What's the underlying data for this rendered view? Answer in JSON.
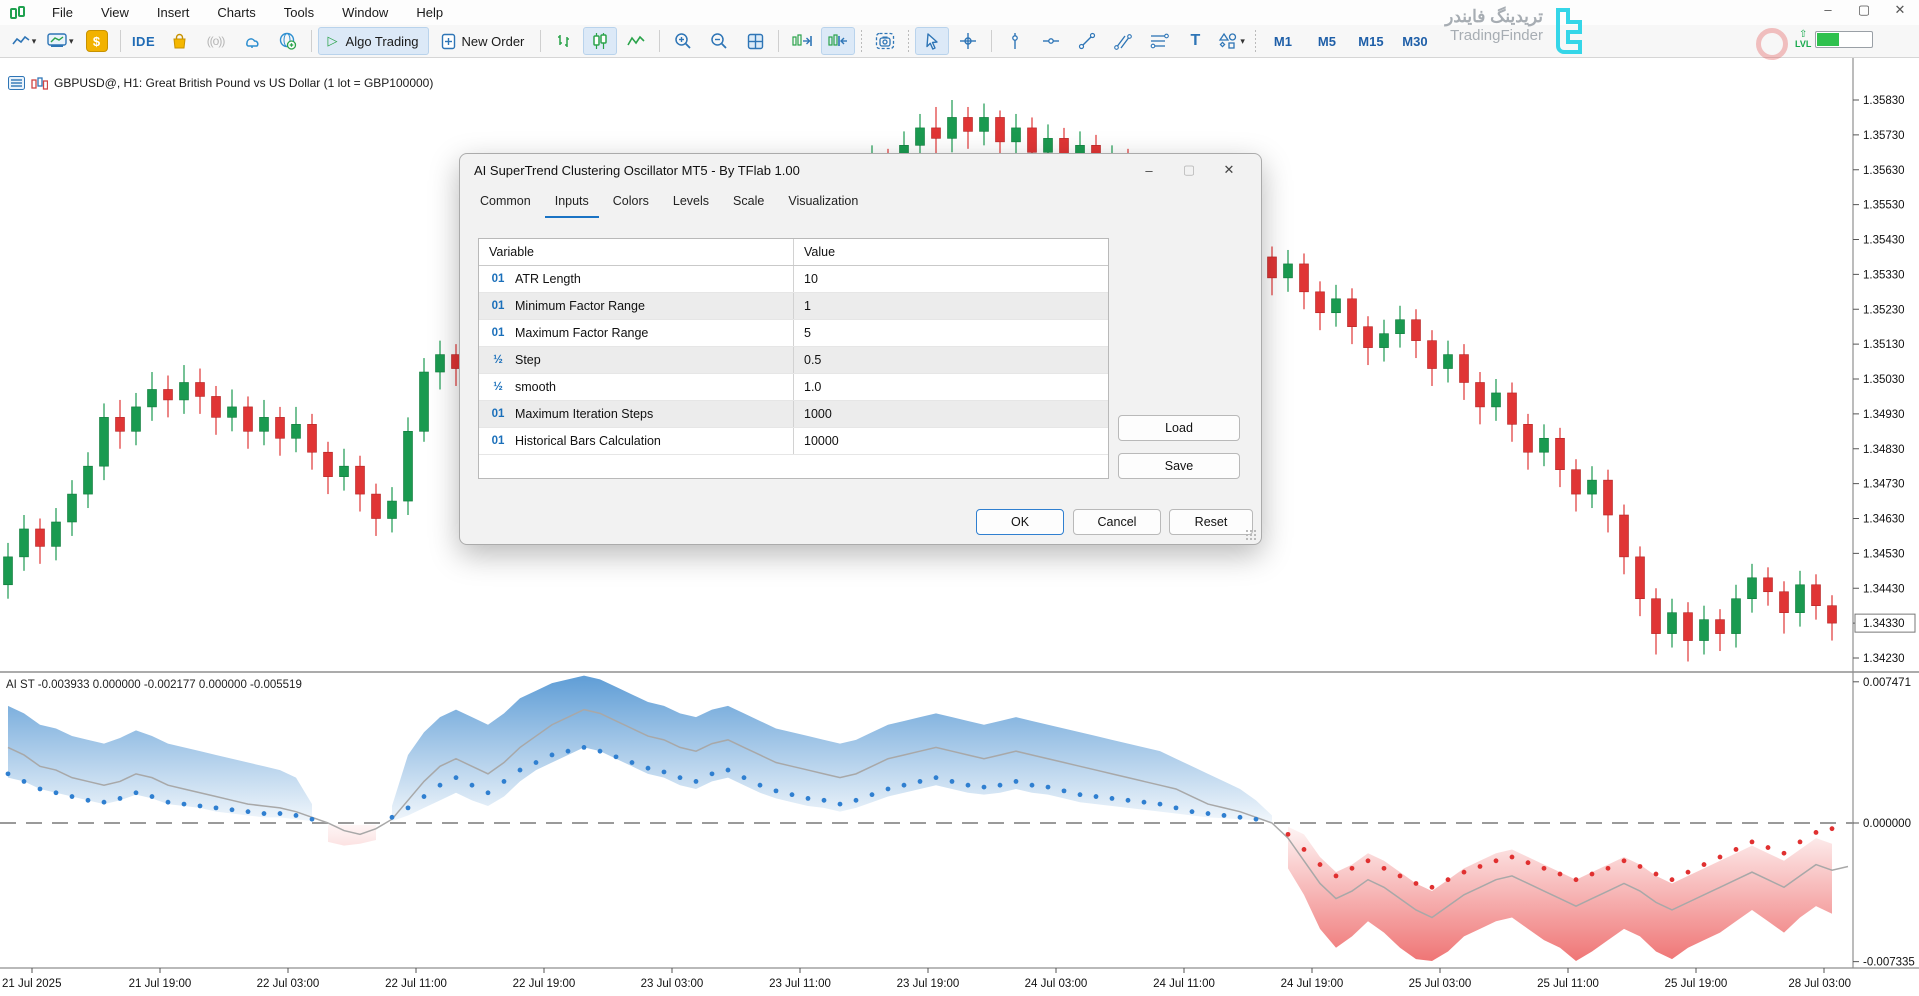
{
  "window": {
    "minimize": "–",
    "maximize": "▢",
    "close": "✕"
  },
  "menu": {
    "items": [
      "File",
      "View",
      "Insert",
      "Charts",
      "Tools",
      "Window",
      "Help"
    ]
  },
  "toolbar": {
    "ide_label": "IDE",
    "algo_trading_label": "Algo Trading",
    "new_order_label": "New Order",
    "timeframes": [
      "M1",
      "M5",
      "M15",
      "M30"
    ],
    "lvl_label": "LVL",
    "dollar_glyph": "$",
    "signal_glyph": "((o))",
    "text_tool_glyph": "T",
    "caret_glyph": "▾"
  },
  "brand": {
    "fa": "تریدینگ فایندر",
    "en": "TradingFinder"
  },
  "chart_header": {
    "symbol_line": "GBPUSD@, H1:  Great British Pound vs US Dollar (1 lot = GBP100000)"
  },
  "dialog": {
    "title": "AI SuperTrend Clustering Oscillator MT5 - By TFlab 1.00",
    "tabs": [
      "Common",
      "Inputs",
      "Colors",
      "Levels",
      "Scale",
      "Visualization"
    ],
    "active_tab": "Inputs",
    "table_headers": [
      "Variable",
      "Value"
    ],
    "rows": [
      {
        "icon": "01",
        "name": "ATR Length",
        "value": "10"
      },
      {
        "icon": "01",
        "name": "Minimum Factor Range",
        "value": "1"
      },
      {
        "icon": "01",
        "name": "Maximum Factor Range",
        "value": "5"
      },
      {
        "icon": "½",
        "name": "Step",
        "value": "0.5"
      },
      {
        "icon": "½",
        "name": "smooth",
        "value": "1.0"
      },
      {
        "icon": "01",
        "name": "Maximum Iteration Steps",
        "value": "1000"
      },
      {
        "icon": "01",
        "name": "Historical Bars Calculation",
        "value": "10000"
      }
    ],
    "buttons": {
      "load": "Load",
      "save": "Save",
      "ok": "OK",
      "cancel": "Cancel",
      "reset": "Reset"
    }
  },
  "price_axis": {
    "labels": [
      "1.35830",
      "1.35730",
      "1.35630",
      "1.35530",
      "1.35430",
      "1.35330",
      "1.35230",
      "1.35130",
      "1.35030",
      "1.34930",
      "1.34830",
      "1.34730",
      "1.34630",
      "1.34530",
      "1.34430",
      "1.34330",
      "1.34230"
    ],
    "current_label": "1.34330"
  },
  "time_axis": {
    "labels": [
      "21 Jul 2025",
      "21 Jul 19:00",
      "22 Jul 03:00",
      "22 Jul 11:00",
      "22 Jul 19:00",
      "23 Jul 03:00",
      "23 Jul 11:00",
      "23 Jul 19:00",
      "24 Jul 03:00",
      "24 Jul 11:00",
      "24 Jul 19:00",
      "25 Jul 03:00",
      "25 Jul 11:00",
      "25 Jul 19:00",
      "28 Jul 03:00"
    ]
  },
  "oscillator_panel": {
    "label": "AI ST -0.003933 0.000000 -0.002177 0.000000 -0.005519",
    "axis_labels": [
      "0.007471",
      "0.000000",
      "-0.007335"
    ]
  },
  "chart_data": {
    "type": "candlestick+oscillator",
    "symbol": "GBPUSD",
    "timeframe": "H1",
    "price_top_label": 1.3583,
    "price_step": 0.001,
    "current_price": 1.3433,
    "colors": {
      "up": "#1a9a50",
      "down": "#e03535",
      "osc_blue": "#5b9bd5",
      "osc_red": "#ee6b6b",
      "dot_blue": "#2f7fd0",
      "dot_red": "#e03030",
      "osc_line": "#a8a8a8"
    },
    "candles": [
      [
        1.3444,
        1.3456,
        1.344,
        1.3452
      ],
      [
        1.3452,
        1.3464,
        1.3448,
        1.346
      ],
      [
        1.346,
        1.3463,
        1.345,
        1.3455
      ],
      [
        1.3455,
        1.3466,
        1.3451,
        1.3462
      ],
      [
        1.3462,
        1.3474,
        1.3458,
        1.347
      ],
      [
        1.347,
        1.3482,
        1.3466,
        1.3478
      ],
      [
        1.3478,
        1.3496,
        1.3474,
        1.3492
      ],
      [
        1.3492,
        1.3497,
        1.3483,
        1.3488
      ],
      [
        1.3488,
        1.3499,
        1.3484,
        1.3495
      ],
      [
        1.3495,
        1.3505,
        1.3491,
        1.35
      ],
      [
        1.35,
        1.3504,
        1.3492,
        1.3497
      ],
      [
        1.3497,
        1.3507,
        1.3493,
        1.3502
      ],
      [
        1.3502,
        1.3506,
        1.3493,
        1.3498
      ],
      [
        1.3498,
        1.3501,
        1.3487,
        1.3492
      ],
      [
        1.3492,
        1.35,
        1.3488,
        1.3495
      ],
      [
        1.3495,
        1.3498,
        1.3483,
        1.3488
      ],
      [
        1.3488,
        1.3497,
        1.3484,
        1.3492
      ],
      [
        1.3492,
        1.3495,
        1.3481,
        1.3486
      ],
      [
        1.3486,
        1.3495,
        1.3482,
        1.349
      ],
      [
        1.349,
        1.3493,
        1.3477,
        1.3482
      ],
      [
        1.3482,
        1.3485,
        1.347,
        1.3475
      ],
      [
        1.3475,
        1.3483,
        1.3471,
        1.3478
      ],
      [
        1.3478,
        1.3481,
        1.3465,
        1.347
      ],
      [
        1.347,
        1.3473,
        1.3458,
        1.3463
      ],
      [
        1.3463,
        1.3472,
        1.3459,
        1.3468
      ],
      [
        1.3468,
        1.3492,
        1.3464,
        1.3488
      ],
      [
        1.3488,
        1.3509,
        1.3485,
        1.3505
      ],
      [
        1.3505,
        1.3514,
        1.35,
        1.351
      ],
      [
        1.351,
        1.3513,
        1.3501,
        1.3506
      ],
      [
        1.3506,
        1.3516,
        1.3502,
        1.3512
      ],
      [
        1.3512,
        1.3515,
        1.349,
        1.3495
      ],
      [
        1.3495,
        1.3498,
        1.3478,
        1.3483
      ],
      [
        1.3483,
        1.3494,
        1.3479,
        1.349
      ],
      [
        1.349,
        1.3502,
        1.3486,
        1.3498
      ],
      [
        1.3498,
        1.3509,
        1.3494,
        1.3505
      ],
      [
        1.3505,
        1.3508,
        1.3495,
        1.35
      ],
      [
        1.35,
        1.3512,
        1.3496,
        1.3508
      ],
      [
        1.3508,
        1.3519,
        1.3504,
        1.3515
      ],
      [
        1.3515,
        1.3518,
        1.3505,
        1.351
      ],
      [
        1.351,
        1.3522,
        1.3506,
        1.3518
      ],
      [
        1.3518,
        1.3528,
        1.3514,
        1.3524
      ],
      [
        1.3524,
        1.3527,
        1.3515,
        1.352
      ],
      [
        1.352,
        1.3532,
        1.3516,
        1.3528
      ],
      [
        1.3528,
        1.3539,
        1.3524,
        1.3535
      ],
      [
        1.3535,
        1.3538,
        1.3525,
        1.353
      ],
      [
        1.353,
        1.3542,
        1.3526,
        1.3538
      ],
      [
        1.3538,
        1.3549,
        1.3534,
        1.3545
      ],
      [
        1.3545,
        1.3548,
        1.3535,
        1.354
      ],
      [
        1.354,
        1.3552,
        1.3536,
        1.3548
      ],
      [
        1.3548,
        1.3551,
        1.3538,
        1.3543
      ],
      [
        1.3543,
        1.3554,
        1.3539,
        1.355
      ],
      [
        1.355,
        1.356,
        1.3546,
        1.3556
      ],
      [
        1.3556,
        1.3559,
        1.3547,
        1.3552
      ],
      [
        1.3552,
        1.3564,
        1.3548,
        1.356
      ],
      [
        1.356,
        1.357,
        1.3556,
        1.3566
      ],
      [
        1.3566,
        1.3569,
        1.3557,
        1.3562
      ],
      [
        1.3562,
        1.3574,
        1.3558,
        1.357
      ],
      [
        1.357,
        1.3579,
        1.3566,
        1.3575
      ],
      [
        1.3575,
        1.3581,
        1.3567,
        1.3572
      ],
      [
        1.3572,
        1.3583,
        1.3568,
        1.3578
      ],
      [
        1.3578,
        1.3581,
        1.3569,
        1.3574
      ],
      [
        1.3574,
        1.3582,
        1.357,
        1.3578
      ],
      [
        1.3578,
        1.358,
        1.3566,
        1.3571
      ],
      [
        1.3571,
        1.3579,
        1.3567,
        1.3575
      ],
      [
        1.3575,
        1.3578,
        1.3563,
        1.3568
      ],
      [
        1.3568,
        1.3576,
        1.3564,
        1.3572
      ],
      [
        1.3572,
        1.3575,
        1.356,
        1.3565
      ],
      [
        1.3565,
        1.3574,
        1.3561,
        1.357
      ],
      [
        1.357,
        1.3573,
        1.3557,
        1.3562
      ],
      [
        1.3562,
        1.357,
        1.3558,
        1.3566
      ],
      [
        1.3566,
        1.3569,
        1.3553,
        1.3558
      ],
      [
        1.3558,
        1.3566,
        1.3554,
        1.3562
      ],
      [
        1.3562,
        1.3565,
        1.355,
        1.3555
      ],
      [
        1.3555,
        1.3563,
        1.3551,
        1.3559
      ],
      [
        1.3559,
        1.3562,
        1.3547,
        1.3552
      ],
      [
        1.3552,
        1.356,
        1.3548,
        1.3556
      ],
      [
        1.3556,
        1.3559,
        1.3543,
        1.3548
      ],
      [
        1.3548,
        1.3556,
        1.3544,
        1.3552
      ],
      [
        1.3552,
        1.3555,
        1.3533,
        1.3538
      ],
      [
        1.3538,
        1.3541,
        1.3527,
        1.3532
      ],
      [
        1.3532,
        1.354,
        1.3528,
        1.3536
      ],
      [
        1.3536,
        1.3539,
        1.3523,
        1.3528
      ],
      [
        1.3528,
        1.3531,
        1.3517,
        1.3522
      ],
      [
        1.3522,
        1.353,
        1.3518,
        1.3526
      ],
      [
        1.3526,
        1.3529,
        1.3513,
        1.3518
      ],
      [
        1.3518,
        1.3521,
        1.3507,
        1.3512
      ],
      [
        1.3512,
        1.352,
        1.3508,
        1.3516
      ],
      [
        1.3516,
        1.3524,
        1.3512,
        1.352
      ],
      [
        1.352,
        1.3523,
        1.3509,
        1.3514
      ],
      [
        1.3514,
        1.3517,
        1.3501,
        1.3506
      ],
      [
        1.3506,
        1.3514,
        1.3502,
        1.351
      ],
      [
        1.351,
        1.3513,
        1.3497,
        1.3502
      ],
      [
        1.3502,
        1.3505,
        1.349,
        1.3495
      ],
      [
        1.3495,
        1.3503,
        1.3491,
        1.3499
      ],
      [
        1.3499,
        1.3502,
        1.3485,
        1.349
      ],
      [
        1.349,
        1.3493,
        1.3477,
        1.3482
      ],
      [
        1.3482,
        1.349,
        1.3478,
        1.3486
      ],
      [
        1.3486,
        1.3489,
        1.3472,
        1.3477
      ],
      [
        1.3477,
        1.348,
        1.3465,
        1.347
      ],
      [
        1.347,
        1.3478,
        1.3466,
        1.3474
      ],
      [
        1.3474,
        1.3477,
        1.3459,
        1.3464
      ],
      [
        1.3464,
        1.3467,
        1.3447,
        1.3452
      ],
      [
        1.3452,
        1.3455,
        1.3435,
        1.344
      ],
      [
        1.344,
        1.3443,
        1.3424,
        1.343
      ],
      [
        1.343,
        1.344,
        1.3426,
        1.3436
      ],
      [
        1.3436,
        1.3439,
        1.3422,
        1.3428
      ],
      [
        1.3428,
        1.3438,
        1.3424,
        1.3434
      ],
      [
        1.3434,
        1.3437,
        1.3425,
        1.343
      ],
      [
        1.343,
        1.3444,
        1.3426,
        1.344
      ],
      [
        1.344,
        1.345,
        1.3436,
        1.3446
      ],
      [
        1.3446,
        1.3449,
        1.3438,
        1.3442
      ],
      [
        1.3442,
        1.3445,
        1.343,
        1.3436
      ],
      [
        1.3436,
        1.3448,
        1.3432,
        1.3444
      ],
      [
        1.3444,
        1.3447,
        1.3434,
        1.3438
      ],
      [
        1.3438,
        1.3441,
        1.3428,
        1.3433
      ]
    ],
    "oscillator": {
      "unit": 0.001,
      "max_label": 0.007471,
      "min_label": -0.007335,
      "zero": 0,
      "line": [
        4.0,
        3.6,
        3.0,
        2.8,
        2.4,
        2.2,
        2.0,
        2.2,
        2.6,
        2.4,
        2.0,
        1.8,
        1.6,
        1.4,
        1.2,
        1.0,
        0.9,
        0.8,
        0.6,
        0.3,
        0.0,
        -0.4,
        -0.6,
        -0.3,
        0.2,
        1.2,
        2.2,
        3.0,
        3.4,
        3.0,
        2.6,
        3.2,
        4.0,
        4.6,
        5.2,
        5.6,
        6.0,
        5.8,
        5.4,
        5.0,
        4.6,
        4.4,
        4.0,
        3.8,
        4.2,
        4.4,
        4.0,
        3.6,
        3.2,
        3.0,
        2.8,
        2.6,
        2.4,
        2.6,
        3.0,
        3.4,
        3.6,
        3.8,
        4.0,
        3.8,
        3.6,
        3.4,
        3.6,
        3.8,
        3.6,
        3.4,
        3.2,
        3.0,
        2.8,
        2.6,
        2.4,
        2.2,
        2.0,
        1.8,
        1.4,
        1.0,
        0.8,
        0.6,
        0.3,
        0.0,
        -0.8,
        -2.0,
        -3.2,
        -4.0,
        -3.6,
        -3.0,
        -3.4,
        -4.0,
        -4.6,
        -5.0,
        -4.4,
        -3.8,
        -3.4,
        -3.0,
        -2.8,
        -3.2,
        -3.6,
        -4.0,
        -4.4,
        -4.0,
        -3.6,
        -3.2,
        -3.6,
        -4.2,
        -4.6,
        -4.2,
        -3.8,
        -3.4,
        -3.0,
        -2.6,
        -3.0,
        -3.4,
        -2.8,
        -2.2,
        -2.5,
        -2.3
      ],
      "band_hi": [
        6.2,
        5.8,
        5.2,
        5.0,
        4.6,
        4.4,
        4.2,
        4.5,
        4.9,
        4.6,
        4.2,
        4.0,
        3.8,
        3.6,
        3.4,
        3.2,
        3.0,
        2.8,
        2.4,
        1.0,
        -0.1,
        -0.1,
        -0.1,
        -0.1,
        0.9,
        3.6,
        4.8,
        5.6,
        6.0,
        5.6,
        5.2,
        5.8,
        6.6,
        7.0,
        7.4,
        7.6,
        7.8,
        7.6,
        7.2,
        6.8,
        6.4,
        6.2,
        5.8,
        5.6,
        6.0,
        6.2,
        5.8,
        5.4,
        5.0,
        4.8,
        4.6,
        4.4,
        4.2,
        4.4,
        4.8,
        5.2,
        5.4,
        5.6,
        5.8,
        5.6,
        5.4,
        5.2,
        5.4,
        5.6,
        5.4,
        5.2,
        5.0,
        4.8,
        4.6,
        4.4,
        4.2,
        4.0,
        3.8,
        3.4,
        3.0,
        2.6,
        2.2,
        1.8,
        1.2,
        0.4,
        -0.2,
        -0.6,
        -1.8,
        -2.6,
        -2.2,
        -1.6,
        -2.0,
        -2.6,
        -3.2,
        -3.6,
        -3.0,
        -2.4,
        -2.0,
        -1.6,
        -1.4,
        -1.8,
        -2.2,
        -2.6,
        -3.0,
        -2.6,
        -2.2,
        -1.8,
        -2.2,
        -2.8,
        -3.2,
        -2.8,
        -2.4,
        -2.0,
        -1.6,
        -1.2,
        -1.6,
        -2.0,
        -1.4,
        -0.8,
        -1.1
      ],
      "band_lo": [
        2.4,
        2.2,
        1.8,
        1.6,
        1.4,
        1.2,
        1.0,
        1.2,
        1.5,
        1.3,
        1.0,
        0.9,
        0.8,
        0.6,
        0.5,
        0.4,
        0.3,
        0.3,
        0.2,
        0.1,
        -1.0,
        -1.2,
        -1.1,
        -0.9,
        0.1,
        0.4,
        0.8,
        1.2,
        1.6,
        1.2,
        0.9,
        1.4,
        2.2,
        2.8,
        3.2,
        3.6,
        4.0,
        3.8,
        3.4,
        3.0,
        2.6,
        2.4,
        2.0,
        1.8,
        2.2,
        2.4,
        2.0,
        1.6,
        1.3,
        1.1,
        0.9,
        0.8,
        0.6,
        0.8,
        1.1,
        1.4,
        1.6,
        1.8,
        2.0,
        1.8,
        1.6,
        1.5,
        1.6,
        1.8,
        1.6,
        1.5,
        1.3,
        1.1,
        1.0,
        0.9,
        0.8,
        0.7,
        0.6,
        0.5,
        0.4,
        0.3,
        0.25,
        0.2,
        0.15,
        0.05,
        -2.4,
        -3.8,
        -5.6,
        -6.6,
        -6.0,
        -5.2,
        -5.8,
        -6.6,
        -7.2,
        -7.3,
        -6.8,
        -6.0,
        -5.6,
        -5.2,
        -5.0,
        -5.6,
        -6.2,
        -6.6,
        -7.3,
        -6.8,
        -6.2,
        -5.6,
        -6.0,
        -6.8,
        -7.2,
        -6.6,
        -6.2,
        -5.8,
        -5.2,
        -4.6,
        -5.2,
        -5.8,
        -5.0,
        -4.4,
        -4.8
      ],
      "dots": [
        2.6,
        2.2,
        1.8,
        1.6,
        1.4,
        1.2,
        1.1,
        1.3,
        1.6,
        1.4,
        1.1,
        1.0,
        0.9,
        0.8,
        0.7,
        0.6,
        0.5,
        0.5,
        0.4,
        0.2,
        null,
        null,
        null,
        null,
        0.3,
        0.8,
        1.4,
        2.0,
        2.4,
        2.0,
        1.6,
        2.2,
        2.8,
        3.2,
        3.6,
        3.8,
        4.0,
        3.8,
        3.5,
        3.2,
        2.9,
        2.7,
        2.4,
        2.2,
        2.6,
        2.8,
        2.4,
        2.0,
        1.7,
        1.5,
        1.3,
        1.2,
        1.0,
        1.2,
        1.5,
        1.8,
        2.0,
        2.2,
        2.4,
        2.2,
        2.0,
        1.9,
        2.0,
        2.2,
        2.0,
        1.9,
        1.7,
        1.5,
        1.4,
        1.3,
        1.2,
        1.1,
        1.0,
        0.8,
        0.6,
        0.5,
        0.4,
        0.3,
        0.2,
        null,
        -0.6,
        -1.4,
        -2.2,
        -2.8,
        -2.4,
        -2.0,
        -2.4,
        -2.8,
        -3.2,
        -3.4,
        -3.0,
        -2.6,
        -2.3,
        -2.0,
        -1.8,
        -2.1,
        -2.4,
        -2.7,
        -3.0,
        -2.7,
        -2.4,
        -2.0,
        -2.3,
        -2.7,
        -3.0,
        -2.6,
        -2.2,
        -1.8,
        -1.4,
        -1.0,
        -1.3,
        -1.6,
        -1.0,
        -0.5,
        -0.3
      ]
    }
  }
}
